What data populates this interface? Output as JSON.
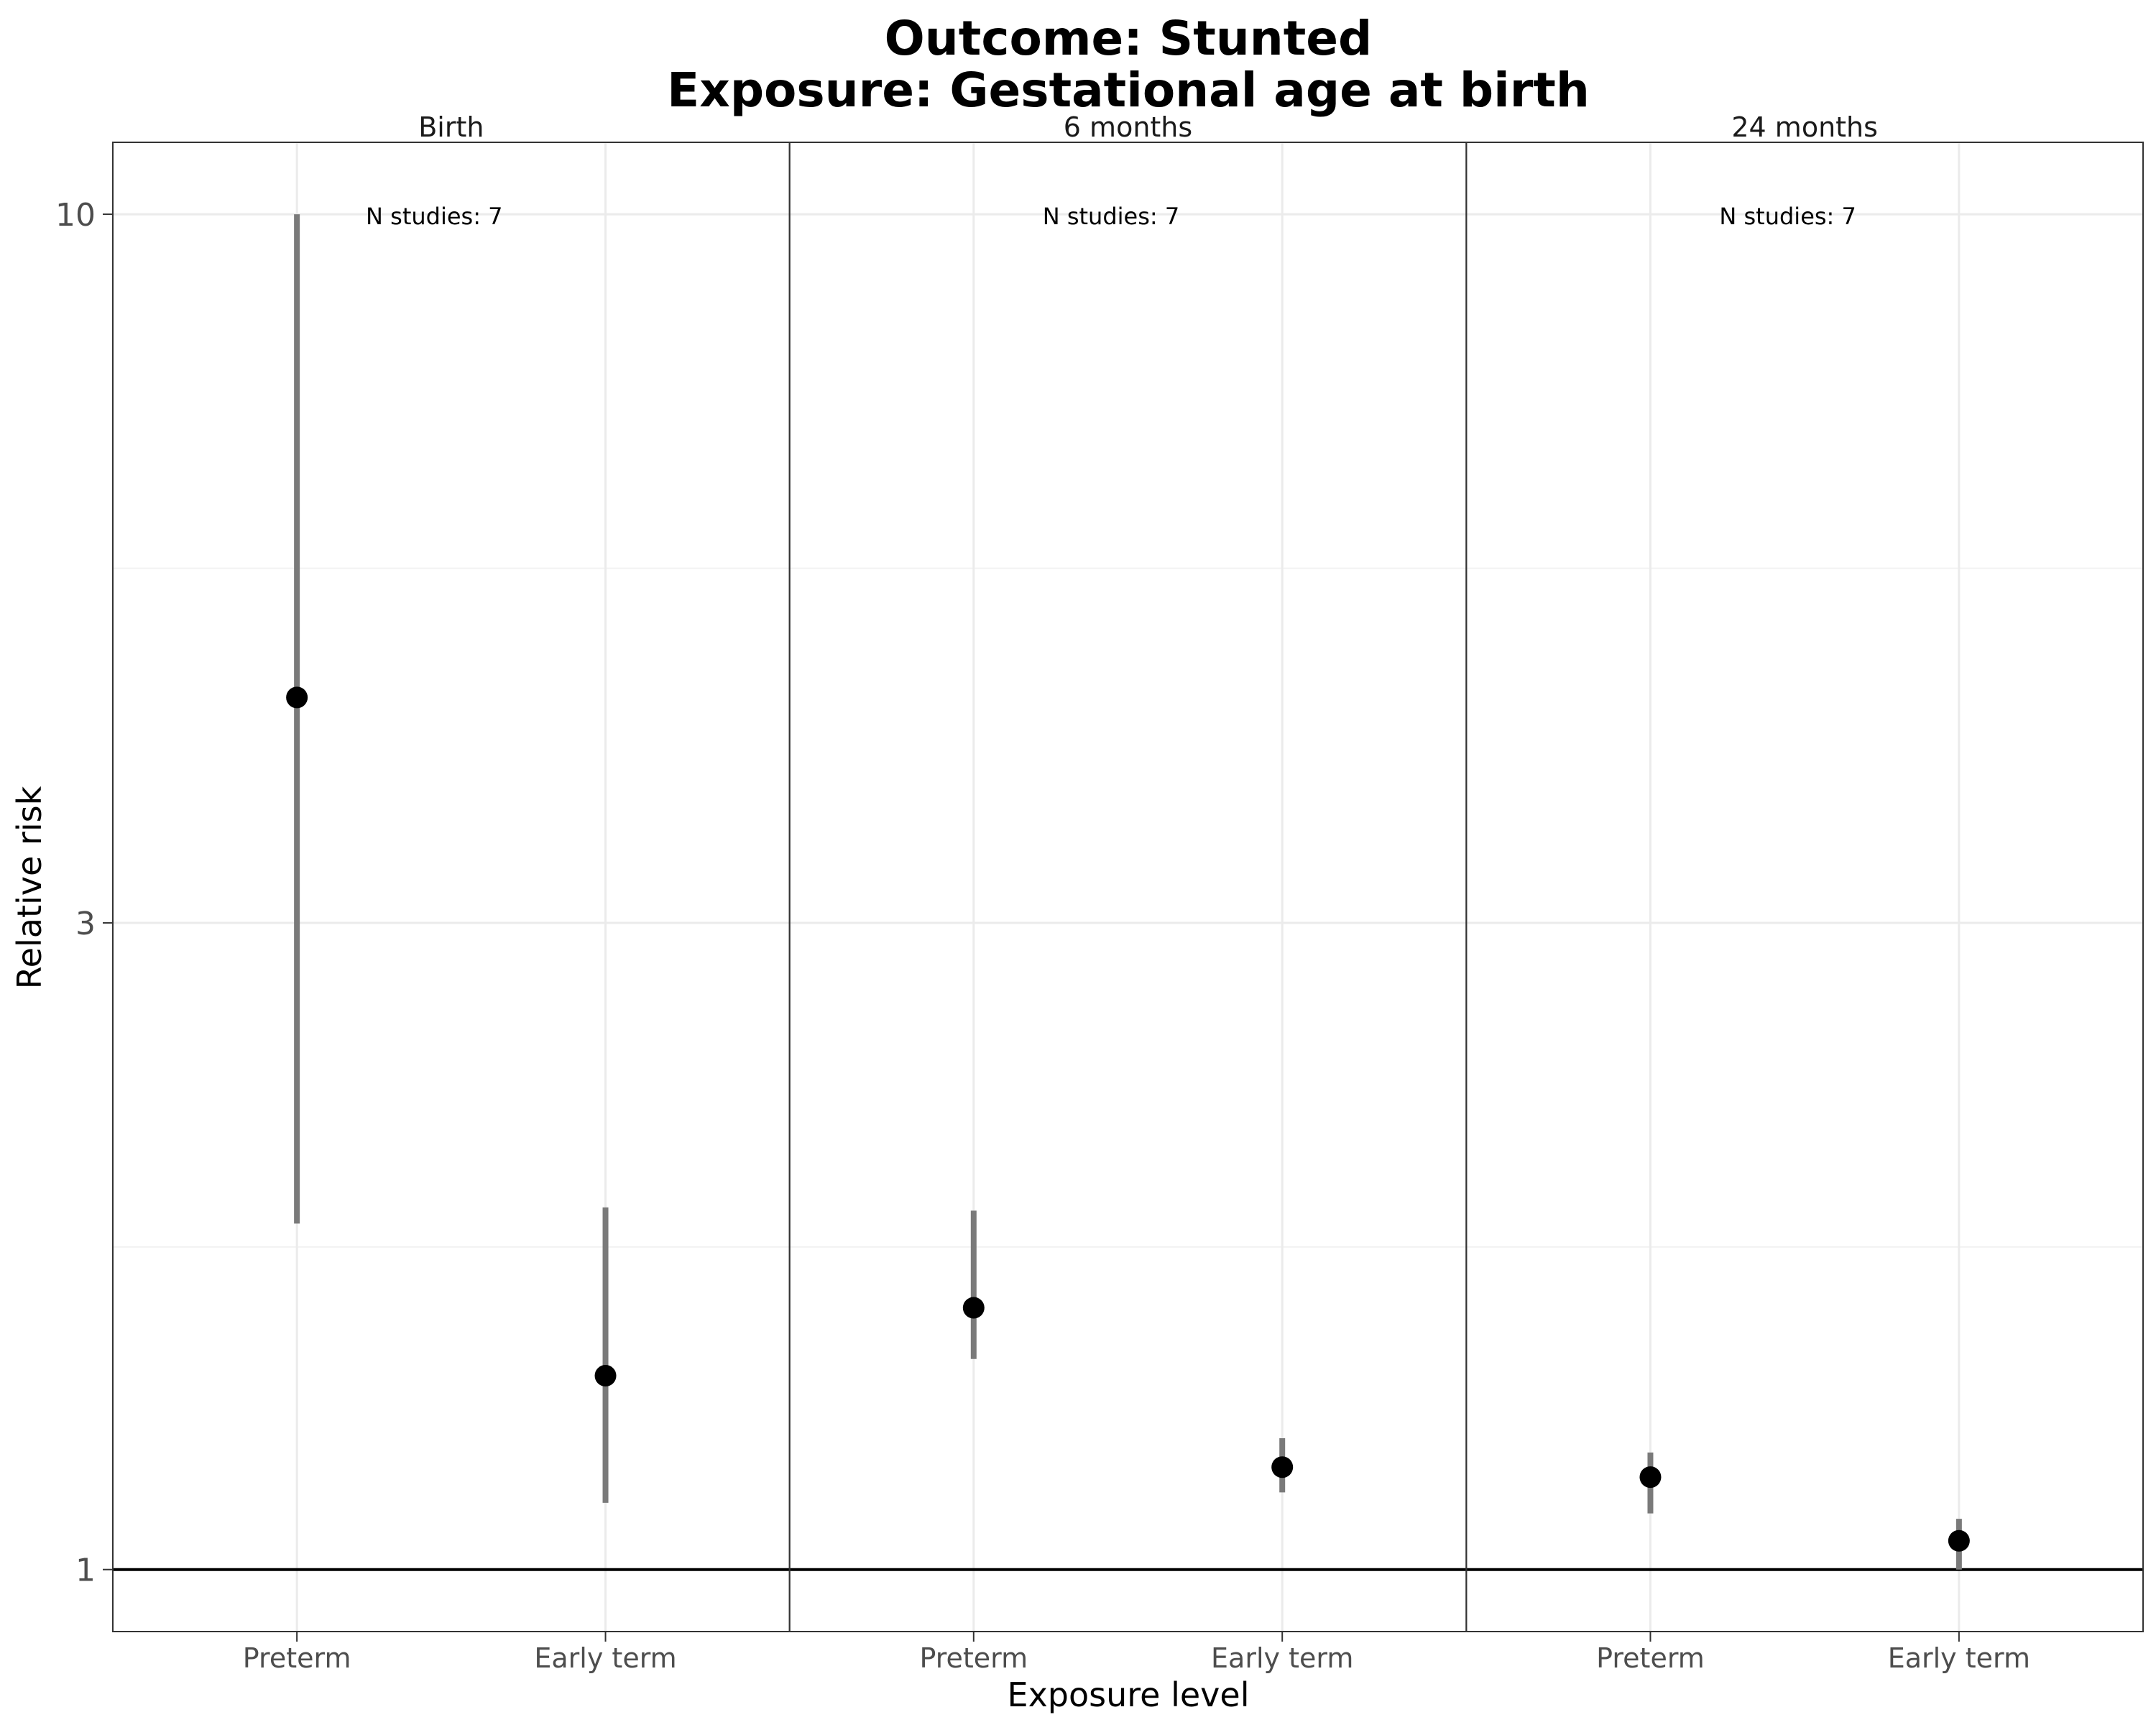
{
  "chart_data": {
    "type": "scatter",
    "title": "Outcome: Stunted",
    "subtitle": "Exposure: Gestational age at birth",
    "xlabel": "Exposure level",
    "ylabel": "Relative risk",
    "y_scale": "log",
    "ylim": [
      0.9,
      11.3
    ],
    "y_ticks": [
      1,
      3,
      10
    ],
    "y_tick_labels": [
      "1",
      "3",
      "10"
    ],
    "y_minor_ticks": [
      1.73,
      5.48
    ],
    "reference_line": 1,
    "grid": true,
    "categories": [
      "Preterm",
      "Early term"
    ],
    "facets": [
      {
        "label": "Birth",
        "n_studies_label": "N studies: 7",
        "points": [
          {
            "category": "Preterm",
            "estimate": 4.4,
            "ci_lower": 1.8,
            "ci_upper": 10.0
          },
          {
            "category": "Early term",
            "estimate": 1.39,
            "ci_lower": 1.12,
            "ci_upper": 1.85
          }
        ]
      },
      {
        "label": "6 months",
        "n_studies_label": "N studies: 7",
        "points": [
          {
            "category": "Preterm",
            "estimate": 1.56,
            "ci_lower": 1.43,
            "ci_upper": 1.84
          },
          {
            "category": "Early term",
            "estimate": 1.19,
            "ci_lower": 1.14,
            "ci_upper": 1.25
          }
        ]
      },
      {
        "label": "24 months",
        "n_studies_label": "N studies: 7",
        "points": [
          {
            "category": "Preterm",
            "estimate": 1.17,
            "ci_lower": 1.1,
            "ci_upper": 1.22
          },
          {
            "category": "Early term",
            "estimate": 1.05,
            "ci_lower": 1.0,
            "ci_upper": 1.09
          }
        ]
      }
    ]
  }
}
